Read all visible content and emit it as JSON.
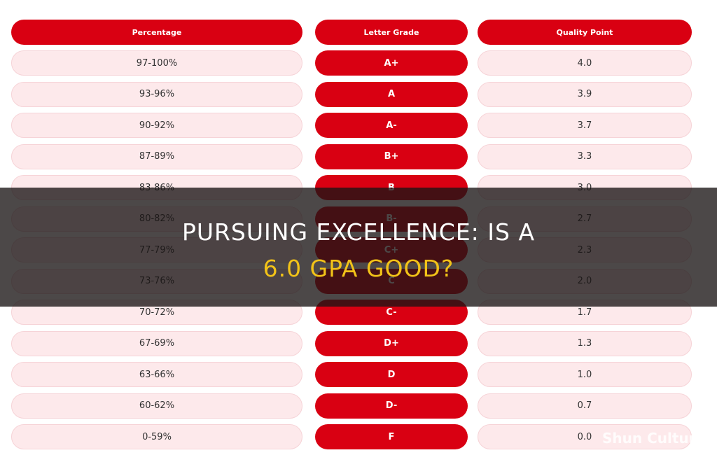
{
  "table": {
    "headers": [
      "Percentage",
      "Letter Grade",
      "Quality Point"
    ],
    "rows": [
      [
        "97-100%",
        "A+",
        "4.0"
      ],
      [
        "93-96%",
        "A",
        "3.9"
      ],
      [
        "90-92%",
        "A-",
        "3.7"
      ],
      [
        "87-89%",
        "B+",
        "3.3"
      ],
      [
        "83-86%",
        "B",
        "3.0"
      ],
      [
        "80-82%",
        "B-",
        "2.7"
      ],
      [
        "77-79%",
        "C+",
        "2.3"
      ],
      [
        "73-76%",
        "C",
        "2.0"
      ],
      [
        "70-72%",
        "C-",
        "1.7"
      ],
      [
        "67-69%",
        "D+",
        "1.3"
      ],
      [
        "63-66%",
        "D",
        "1.0"
      ],
      [
        "60-62%",
        "D-",
        "0.7"
      ],
      [
        "0-59%",
        "F",
        "0.0"
      ]
    ]
  },
  "banner": {
    "line1": "PURSUING EXCELLENCE: IS A",
    "line2": "6.0 GPA GOOD?"
  },
  "watermark": "Shun Culture"
}
